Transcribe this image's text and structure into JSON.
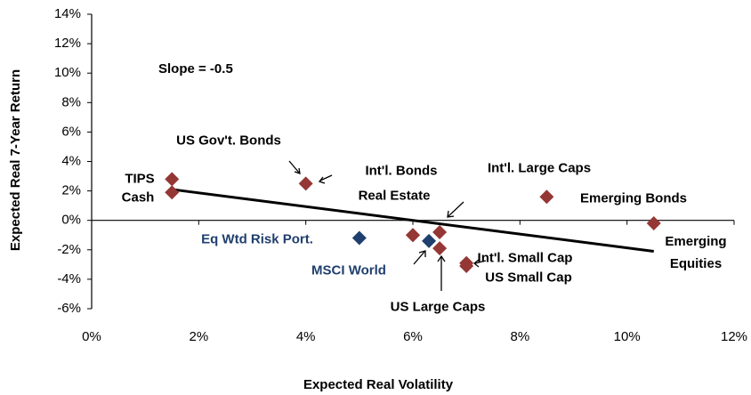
{
  "chart_data": {
    "type": "scatter",
    "xlabel": "Expected Real Volatility",
    "ylabel": "Expected Real 7-Year Return",
    "annotation": "Slope = -0.5",
    "xlim": [
      0,
      12
    ],
    "xticks": [
      {
        "value": 0,
        "label": "0%"
      },
      {
        "value": 2,
        "label": "2%"
      },
      {
        "value": 4,
        "label": "4%"
      },
      {
        "value": 6,
        "label": "6%"
      },
      {
        "value": 8,
        "label": "8%"
      },
      {
        "value": 10,
        "label": "10%"
      },
      {
        "value": 12,
        "label": "12%"
      }
    ],
    "ylim": [
      -6,
      14
    ],
    "yticks": [
      {
        "value": -6,
        "label": "-6%"
      },
      {
        "value": -4,
        "label": "-4%"
      },
      {
        "value": -2,
        "label": "-2%"
      },
      {
        "value": 0,
        "label": "0%"
      },
      {
        "value": 2,
        "label": "2%"
      },
      {
        "value": 4,
        "label": "4%"
      },
      {
        "value": 6,
        "label": "6%"
      },
      {
        "value": 8,
        "label": "8%"
      },
      {
        "value": 10,
        "label": "10%"
      },
      {
        "value": 12,
        "label": "12%"
      },
      {
        "value": 14,
        "label": "14%"
      }
    ],
    "points": [
      {
        "label": "TIPS",
        "x": 1.5,
        "y": 2.8,
        "color": "#953735"
      },
      {
        "label": "Cash",
        "x": 1.5,
        "y": 1.9,
        "color": "#953735"
      },
      {
        "label": "US Gov't. Bonds",
        "x": 4.0,
        "y": 2.5,
        "color": "#953735"
      },
      {
        "label": "Int'l. Bonds",
        "x": 6.0,
        "y": -1.0,
        "color": "#953735"
      },
      {
        "label": "Real Estate",
        "x": 6.0,
        "y": -1.0,
        "color": "#953735"
      },
      {
        "label": "Int'l. Large Caps",
        "x": 6.5,
        "y": -0.8,
        "color": "#953735"
      },
      {
        "label": "US Large Caps",
        "x": 6.5,
        "y": -1.9,
        "color": "#953735"
      },
      {
        "label": "Int'l. Small Cap",
        "x": 7.0,
        "y": -2.9,
        "color": "#953735"
      },
      {
        "label": "US Small Cap",
        "x": 7.0,
        "y": -3.1,
        "color": "#953735"
      },
      {
        "label": "Emerging Bonds",
        "x": 8.5,
        "y": 1.6,
        "color": "#953735"
      },
      {
        "label": "Emerging Equities",
        "x": 10.5,
        "y": -0.2,
        "color": "#953735"
      },
      {
        "label": "Eq Wtd Risk Port.",
        "x": 5.0,
        "y": -1.2,
        "color": "#1f3f6e"
      },
      {
        "label": "MSCI World",
        "x": 6.3,
        "y": -1.4,
        "color": "#1f3f6e"
      }
    ],
    "trend_line": {
      "x": [
        1.5,
        10.5
      ],
      "y": [
        2.1,
        -2.1
      ],
      "color": "#000000"
    }
  }
}
